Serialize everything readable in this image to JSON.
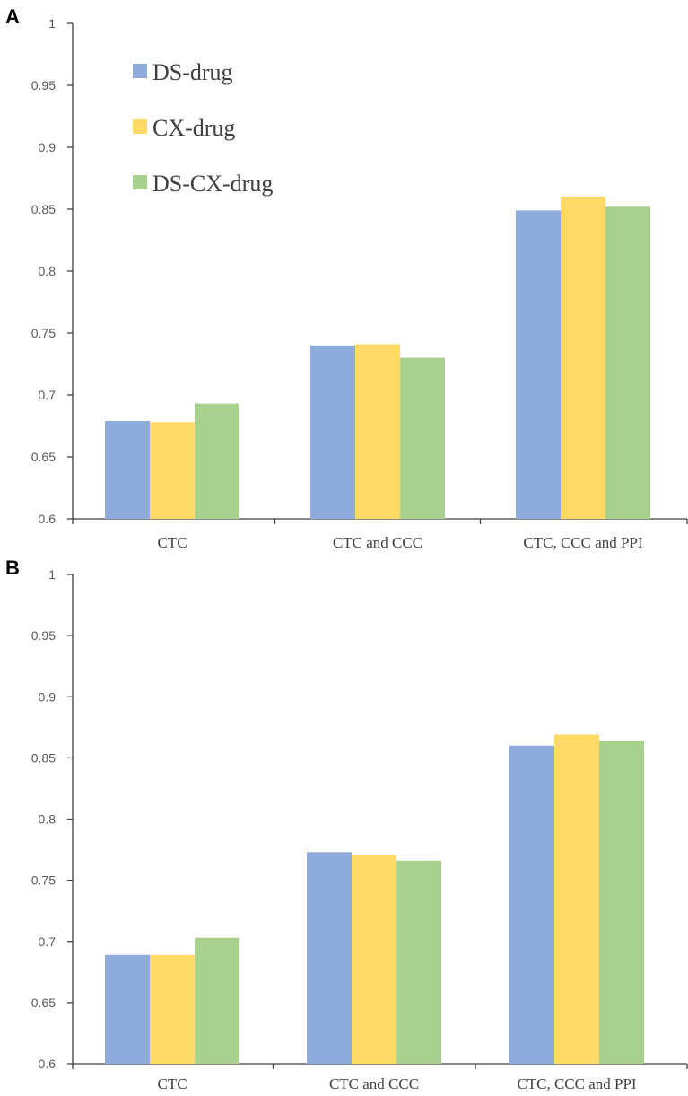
{
  "chart_data": [
    {
      "panel": "A",
      "type": "bar",
      "categories": [
        "CTC",
        "CTC and CCC",
        "CTC, CCC and PPI"
      ],
      "series": [
        {
          "name": "DS-drug",
          "color": "#8FAADC",
          "values": [
            0.679,
            0.74,
            0.849
          ]
        },
        {
          "name": "CX-drug",
          "color": "#FFD966",
          "values": [
            0.678,
            0.741,
            0.86
          ]
        },
        {
          "name": "DS-CX-drug",
          "color": "#A9D18E",
          "values": [
            0.693,
            0.73,
            0.852
          ]
        }
      ],
      "ylim": [
        0.6,
        1
      ],
      "yticks": [
        "1",
        "0.95",
        "0.9",
        "0.85",
        "0.8",
        "0.75",
        "0.7",
        "0.65",
        "0.6"
      ],
      "legend": "top-left inside"
    },
    {
      "panel": "B",
      "type": "bar",
      "categories": [
        "CTC",
        "CTC and CCC",
        "CTC, CCC and PPI"
      ],
      "series": [
        {
          "name": "DS-drug",
          "color": "#8FAADC",
          "values": [
            0.689,
            0.773,
            0.86
          ]
        },
        {
          "name": "CX-drug",
          "color": "#FFD966",
          "values": [
            0.689,
            0.771,
            0.869
          ]
        },
        {
          "name": "DS-CX-drug",
          "color": "#A9D18E",
          "values": [
            0.703,
            0.766,
            0.864
          ]
        }
      ],
      "ylim": [
        0.6,
        1
      ],
      "yticks": [
        "1",
        "0.95",
        "0.9",
        "0.85",
        "0.8",
        "0.75",
        "0.7",
        "0.65",
        "0.6"
      ],
      "legend": "none"
    }
  ]
}
